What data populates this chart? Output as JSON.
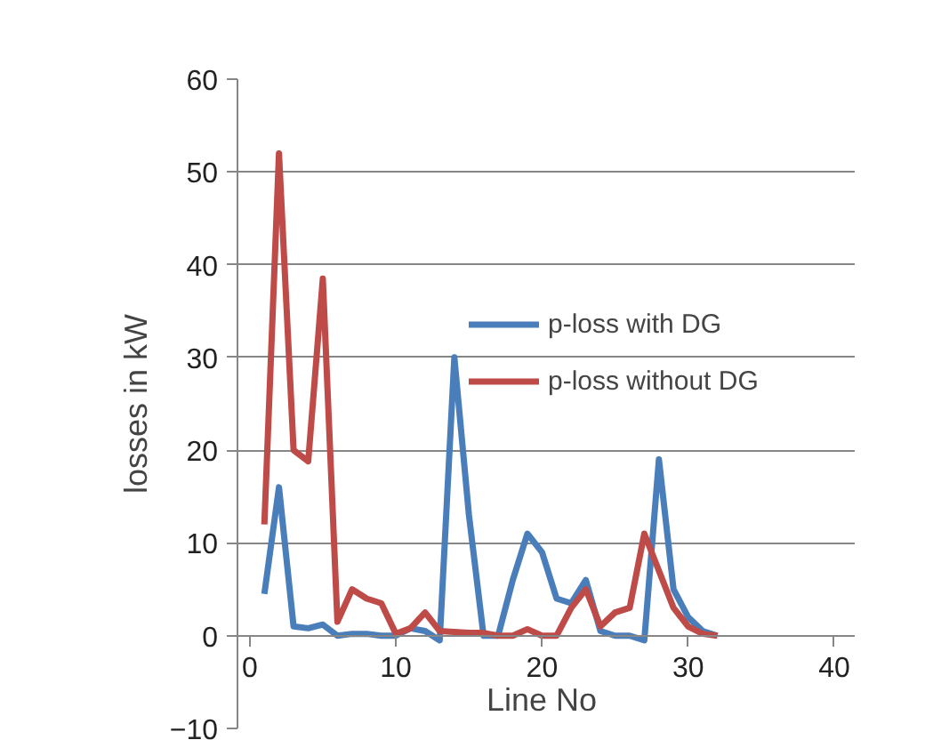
{
  "chart_data": {
    "type": "line",
    "xlabel": "Line No",
    "ylabel": "losses in kW",
    "x": [
      1,
      2,
      3,
      4,
      5,
      6,
      7,
      8,
      9,
      10,
      11,
      12,
      13,
      14,
      15,
      16,
      17,
      18,
      19,
      20,
      21,
      22,
      23,
      24,
      25,
      26,
      27,
      28,
      29,
      30,
      31,
      32
    ],
    "series": [
      {
        "name": "p-loss with DG",
        "color": "#4a7ebb",
        "values": [
          4.5,
          16,
          1,
          0.8,
          1.2,
          0,
          0.2,
          0.2,
          0,
          0,
          0.8,
          0.5,
          -0.5,
          30,
          13,
          0,
          0,
          6,
          11,
          9,
          4,
          3.5,
          6,
          0.5,
          0,
          0,
          -0.5,
          19,
          5,
          2,
          0.5,
          0
        ]
      },
      {
        "name": "p-loss without DG",
        "color": "#be4b48",
        "values": [
          12,
          52,
          20,
          18.8,
          38.5,
          1.5,
          5,
          4,
          3.5,
          0.2,
          0.8,
          2.5,
          0.5,
          0.4,
          0.3,
          0.3,
          0,
          0,
          0.7,
          0,
          0,
          3,
          5,
          1,
          2.5,
          3,
          11,
          7,
          3,
          1,
          0.2,
          0
        ]
      }
    ],
    "xlim": [
      0,
      40
    ],
    "xticks": [
      0,
      10,
      20,
      30,
      40
    ],
    "ylim": [
      -10,
      60
    ],
    "yticks": [
      -10,
      0,
      10,
      20,
      30,
      40,
      50,
      60
    ],
    "grid": "y",
    "legend": "top right",
    "marker": "none",
    "line_style": "solid"
  }
}
